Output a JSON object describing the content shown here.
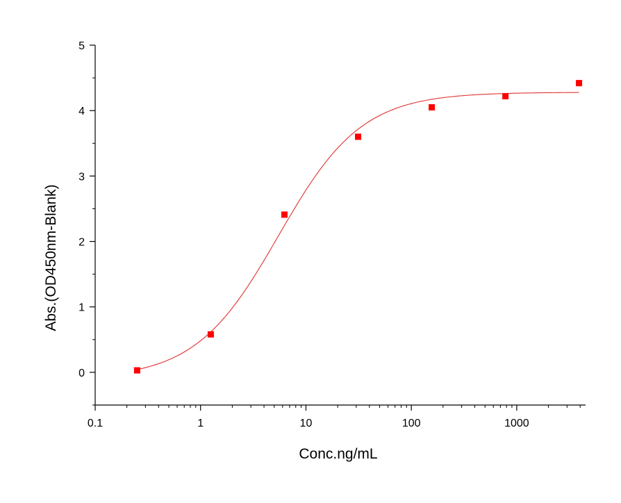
{
  "chart_data": {
    "type": "scatter",
    "title": "",
    "xlabel": "Conc.ng/mL",
    "ylabel": "Abs.(OD450nm-Blank)",
    "x_scale": "log",
    "xlim": [
      0.1,
      4500
    ],
    "ylim": [
      -0.5,
      5
    ],
    "x_ticks": [
      {
        "value": 0.1,
        "label": "0.1"
      },
      {
        "value": 1,
        "label": "1"
      },
      {
        "value": 10,
        "label": "10"
      },
      {
        "value": 100,
        "label": "100"
      },
      {
        "value": 1000,
        "label": "1000"
      }
    ],
    "y_ticks": [
      {
        "value": 0,
        "label": "0"
      },
      {
        "value": 1,
        "label": "1"
      },
      {
        "value": 2,
        "label": "2"
      },
      {
        "value": 3,
        "label": "3"
      },
      {
        "value": 4,
        "label": "4"
      },
      {
        "value": 5,
        "label": "5"
      }
    ],
    "grid": false,
    "legend": "none",
    "series": [
      {
        "kind": "points",
        "marker": "square",
        "color": "#ff0000",
        "x": [
          0.25,
          1.25,
          6.25,
          31.25,
          156.25,
          781.25,
          3900
        ],
        "y": [
          0.03,
          0.58,
          2.41,
          3.6,
          4.05,
          4.22,
          4.42
        ]
      },
      {
        "kind": "fit-curve",
        "color": "#e03030",
        "x_range": [
          0.25,
          3900
        ],
        "logistic4": {
          "bottom": -0.1,
          "top": 4.28,
          "ec50": 5.5,
          "hill": 1.1
        }
      }
    ]
  }
}
